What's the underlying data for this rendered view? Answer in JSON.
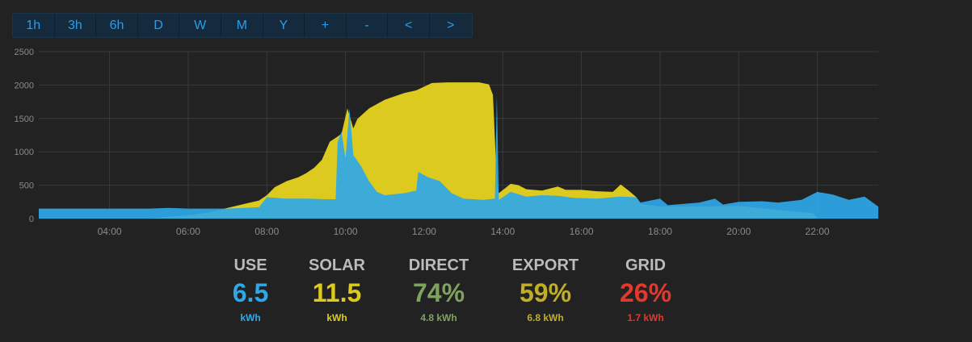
{
  "toolbar": {
    "buttons": [
      "1h",
      "3h",
      "6h",
      "D",
      "W",
      "M",
      "Y",
      "+",
      "-",
      "<",
      ">"
    ]
  },
  "colors": {
    "background": "#222222",
    "use": "#2ea8e8",
    "solar": "#dccb1e",
    "direct": "#7fa35f",
    "export": "#c0ad28",
    "grid": "#e03a2f",
    "stat_label": "#bbbbbb"
  },
  "chart_data": {
    "type": "area",
    "title": "",
    "xlabel": "",
    "ylabel": "",
    "xlim_hours": [
      2.2,
      23.55
    ],
    "ylim": [
      0,
      2500
    ],
    "grid": true,
    "y_ticks": [
      0,
      500,
      1000,
      1500,
      2000,
      2500
    ],
    "x_ticks": [
      "04:00",
      "06:00",
      "08:00",
      "10:00",
      "12:00",
      "14:00",
      "16:00",
      "18:00",
      "20:00",
      "22:00"
    ],
    "x_tick_hours": [
      4,
      6,
      8,
      10,
      12,
      14,
      16,
      18,
      20,
      22
    ],
    "series": [
      {
        "key": "solar",
        "color": "#dccb1e",
        "points": [
          [
            2.2,
            0
          ],
          [
            5.0,
            0
          ],
          [
            5.4,
            20
          ],
          [
            6.0,
            50
          ],
          [
            6.5,
            90
          ],
          [
            7.0,
            160
          ],
          [
            7.5,
            230
          ],
          [
            7.8,
            270
          ],
          [
            8.0,
            350
          ],
          [
            8.2,
            470
          ],
          [
            8.5,
            560
          ],
          [
            8.8,
            620
          ],
          [
            9.0,
            680
          ],
          [
            9.2,
            760
          ],
          [
            9.4,
            880
          ],
          [
            9.6,
            1150
          ],
          [
            9.8,
            1230
          ],
          [
            9.9,
            1270
          ],
          [
            10.05,
            1650
          ],
          [
            10.2,
            1350
          ],
          [
            10.3,
            1490
          ],
          [
            10.6,
            1650
          ],
          [
            11.0,
            1780
          ],
          [
            11.5,
            1880
          ],
          [
            11.8,
            1920
          ],
          [
            12.2,
            2030
          ],
          [
            12.6,
            2040
          ],
          [
            13.0,
            2040
          ],
          [
            13.4,
            2040
          ],
          [
            13.65,
            2010
          ],
          [
            13.75,
            1850
          ],
          [
            13.8,
            1200
          ],
          [
            13.85,
            500
          ],
          [
            13.9,
            380
          ],
          [
            14.2,
            520
          ],
          [
            14.4,
            500
          ],
          [
            14.6,
            440
          ],
          [
            15.0,
            420
          ],
          [
            15.4,
            480
          ],
          [
            15.6,
            430
          ],
          [
            16.0,
            430
          ],
          [
            16.4,
            410
          ],
          [
            16.8,
            400
          ],
          [
            17.0,
            510
          ],
          [
            17.2,
            420
          ],
          [
            17.4,
            320
          ],
          [
            17.5,
            220
          ],
          [
            18.0,
            180
          ],
          [
            19.0,
            180
          ],
          [
            20.0,
            190
          ],
          [
            21.0,
            130
          ],
          [
            21.9,
            80
          ],
          [
            22.0,
            0
          ],
          [
            23.55,
            0
          ]
        ]
      },
      {
        "key": "use",
        "color": "#2ea8e8",
        "points": [
          [
            2.2,
            150
          ],
          [
            5.0,
            150
          ],
          [
            5.5,
            160
          ],
          [
            6.0,
            150
          ],
          [
            7.0,
            150
          ],
          [
            7.8,
            170
          ],
          [
            8.0,
            320
          ],
          [
            8.5,
            300
          ],
          [
            9.0,
            300
          ],
          [
            9.5,
            290
          ],
          [
            9.75,
            290
          ],
          [
            9.8,
            1150
          ],
          [
            9.9,
            1300
          ],
          [
            10.0,
            900
          ],
          [
            10.1,
            1650
          ],
          [
            10.2,
            950
          ],
          [
            10.4,
            780
          ],
          [
            10.6,
            560
          ],
          [
            10.8,
            400
          ],
          [
            11.0,
            350
          ],
          [
            11.5,
            380
          ],
          [
            11.8,
            420
          ],
          [
            11.85,
            700
          ],
          [
            12.1,
            620
          ],
          [
            12.4,
            560
          ],
          [
            12.7,
            380
          ],
          [
            13.0,
            300
          ],
          [
            13.5,
            280
          ],
          [
            13.8,
            300
          ],
          [
            13.85,
            1850
          ],
          [
            13.9,
            280
          ],
          [
            14.2,
            400
          ],
          [
            14.6,
            330
          ],
          [
            15.0,
            350
          ],
          [
            15.4,
            340
          ],
          [
            15.8,
            310
          ],
          [
            16.4,
            300
          ],
          [
            17.0,
            330
          ],
          [
            17.4,
            320
          ],
          [
            17.5,
            240
          ],
          [
            18.0,
            300
          ],
          [
            18.2,
            200
          ],
          [
            19.0,
            240
          ],
          [
            19.4,
            300
          ],
          [
            19.6,
            210
          ],
          [
            20.0,
            250
          ],
          [
            20.6,
            260
          ],
          [
            21.0,
            240
          ],
          [
            21.6,
            280
          ],
          [
            22.0,
            400
          ],
          [
            22.4,
            360
          ],
          [
            22.8,
            280
          ],
          [
            23.2,
            330
          ],
          [
            23.55,
            180
          ]
        ]
      }
    ]
  },
  "stats": [
    {
      "key": "use",
      "label": "USE",
      "value": "6.5",
      "unit": "kWh",
      "color": "#2ea8e8"
    },
    {
      "key": "solar",
      "label": "SOLAR",
      "value": "11.5",
      "unit": "kWh",
      "color": "#dccb1e"
    },
    {
      "key": "direct",
      "label": "DIRECT",
      "value": "74%",
      "unit": "4.8 kWh",
      "color": "#7fa35f"
    },
    {
      "key": "export",
      "label": "EXPORT",
      "value": "59%",
      "unit": "6.8 kWh",
      "color": "#c0ad28"
    },
    {
      "key": "grid",
      "label": "GRID",
      "value": "26%",
      "unit": "1.7 kWh",
      "color": "#e03a2f"
    }
  ]
}
